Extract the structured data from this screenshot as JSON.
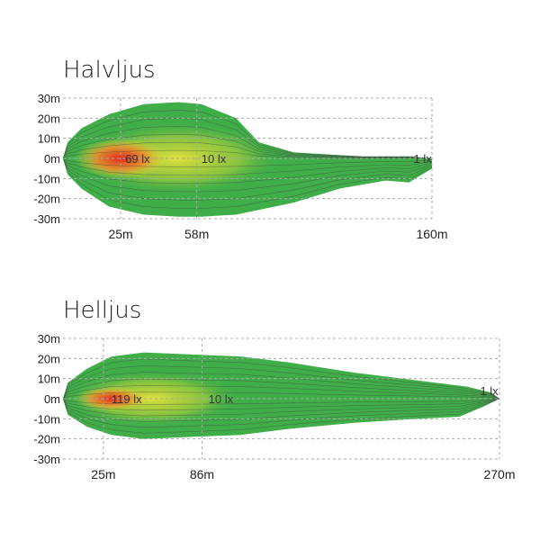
{
  "colors": {
    "low": "#3fae49",
    "mid": "#e9e23a",
    "high": "#e0241d",
    "grid": "#a8a8a8"
  },
  "chart_data": [
    {
      "type": "heatmap",
      "title": "Halvljus",
      "y_ticks": [
        "30m",
        "20m",
        "10m",
        "0m",
        "-10m",
        "-20m",
        "-30m"
      ],
      "y_values": [
        30,
        20,
        10,
        0,
        -10,
        -20,
        -30
      ],
      "ylim": [
        -30,
        30
      ],
      "x_ticks": [
        "25m",
        "58m",
        "160m"
      ],
      "x_values": [
        25,
        58,
        160
      ],
      "xlim": [
        0,
        160
      ],
      "grid": true,
      "labels": [
        {
          "text": "69 lx",
          "x": 27,
          "y": 0
        },
        {
          "text": "10 lx",
          "x": 60,
          "y": 0
        },
        {
          "text": "1 lx",
          "x": 152,
          "y": 0
        }
      ],
      "beam_upper": [
        [
          0,
          0
        ],
        [
          2,
          8
        ],
        [
          8,
          15
        ],
        [
          20,
          22
        ],
        [
          35,
          27
        ],
        [
          50,
          28
        ],
        [
          60,
          27
        ],
        [
          75,
          20
        ],
        [
          80,
          14
        ],
        [
          85,
          8
        ],
        [
          100,
          3
        ],
        [
          130,
          1
        ],
        [
          150,
          1
        ],
        [
          160,
          0
        ]
      ],
      "beam_lower": [
        [
          0,
          0
        ],
        [
          2,
          -8
        ],
        [
          8,
          -15
        ],
        [
          20,
          -24
        ],
        [
          35,
          -28
        ],
        [
          50,
          -29
        ],
        [
          60,
          -29
        ],
        [
          75,
          -28
        ],
        [
          100,
          -22
        ],
        [
          120,
          -15
        ],
        [
          140,
          -11
        ],
        [
          150,
          -12
        ],
        [
          160,
          -5
        ]
      ],
      "hot_spots": [
        {
          "x": 25,
          "y": 0,
          "rx": 20,
          "ry": 10,
          "level": "high"
        },
        {
          "x": 50,
          "y": 0,
          "rx": 45,
          "ry": 18,
          "level": "mid"
        }
      ]
    },
    {
      "type": "heatmap",
      "title": "Helljus",
      "y_ticks": [
        "30m",
        "20m",
        "10m",
        "0m",
        "-10m",
        "-20m",
        "-30m"
      ],
      "y_values": [
        30,
        20,
        10,
        0,
        -10,
        -20,
        -30
      ],
      "ylim": [
        -30,
        30
      ],
      "x_ticks": [
        "25m",
        "86m",
        "270m"
      ],
      "x_values": [
        25,
        86,
        270
      ],
      "xlim": [
        0,
        270
      ],
      "grid": true,
      "labels": [
        {
          "text": "119 lx",
          "x": 30,
          "y": 0
        },
        {
          "text": "10 lx",
          "x": 90,
          "y": 0
        },
        {
          "text": "1 lx",
          "x": 258,
          "y": 4
        }
      ],
      "beam_upper": [
        [
          0,
          0
        ],
        [
          3,
          8
        ],
        [
          15,
          15
        ],
        [
          30,
          21
        ],
        [
          50,
          23
        ],
        [
          80,
          22
        ],
        [
          110,
          21
        ],
        [
          140,
          18
        ],
        [
          180,
          13
        ],
        [
          220,
          9
        ],
        [
          250,
          6
        ],
        [
          265,
          3
        ],
        [
          270,
          0
        ]
      ],
      "beam_lower": [
        [
          0,
          0
        ],
        [
          3,
          -8
        ],
        [
          15,
          -14
        ],
        [
          30,
          -18
        ],
        [
          50,
          -20
        ],
        [
          80,
          -19
        ],
        [
          110,
          -18
        ],
        [
          140,
          -15
        ],
        [
          180,
          -12
        ],
        [
          220,
          -10
        ],
        [
          245,
          -9
        ],
        [
          260,
          -4
        ],
        [
          270,
          0
        ]
      ],
      "hot_spots": [
        {
          "x": 30,
          "y": 0,
          "rx": 22,
          "ry": 6,
          "level": "high"
        },
        {
          "x": 55,
          "y": 0,
          "rx": 55,
          "ry": 14,
          "level": "mid"
        }
      ]
    }
  ]
}
